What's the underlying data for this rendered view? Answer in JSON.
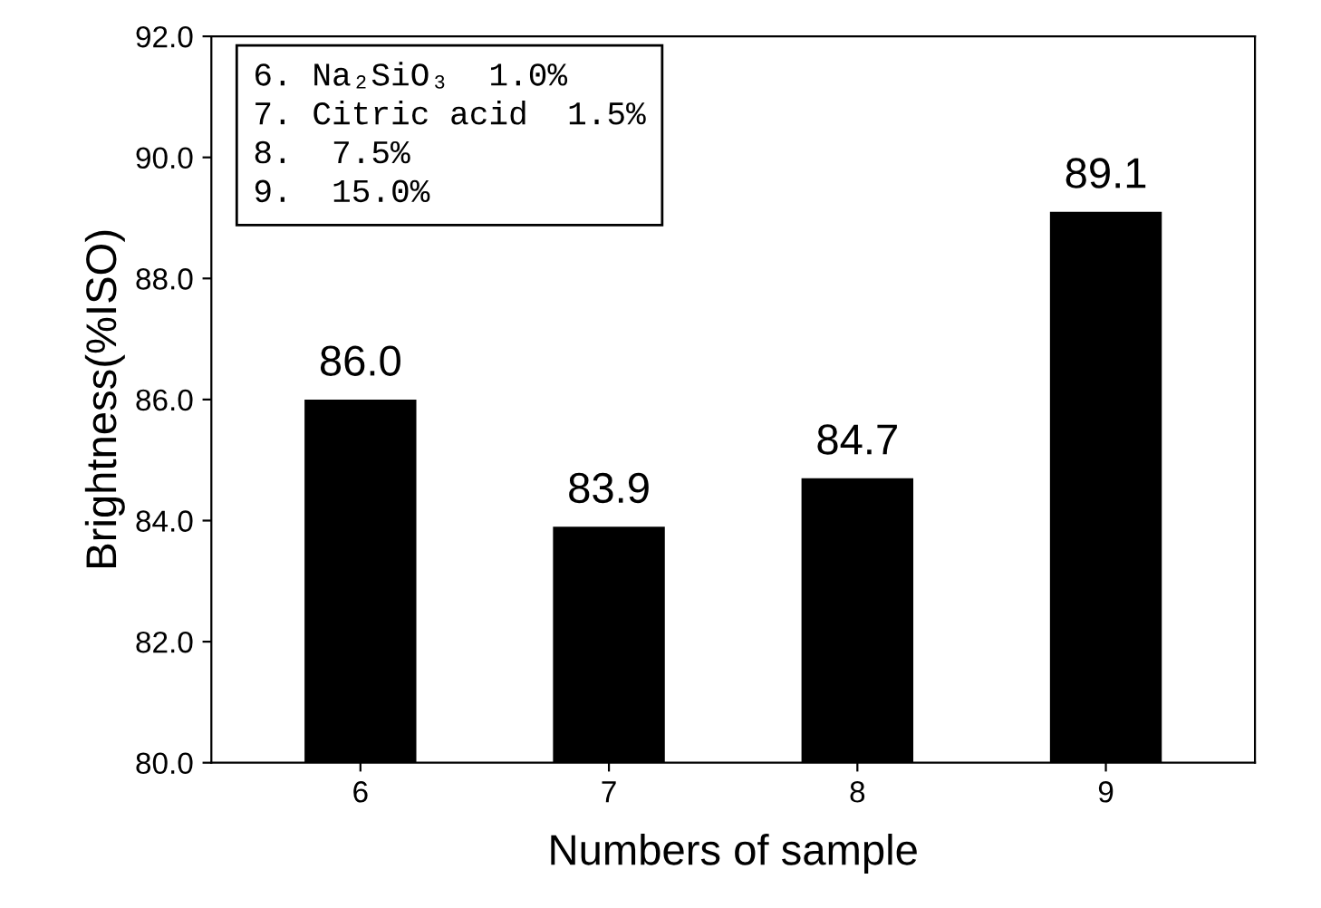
{
  "chart_data": {
    "type": "bar",
    "xlabel": "Numbers of sample",
    "ylabel": "Brightness(%ISO)",
    "categories": [
      "6",
      "7",
      "8",
      "9"
    ],
    "values": [
      86.0,
      83.9,
      84.7,
      89.1
    ],
    "value_labels": [
      "86.0",
      "83.9",
      "84.7",
      "89.1"
    ],
    "color": "#000000",
    "ylim": [
      80,
      92
    ],
    "yticks": [
      {
        "value": 80,
        "label": "80.0"
      },
      {
        "value": 82,
        "label": "82.0"
      },
      {
        "value": 84,
        "label": "84.0"
      },
      {
        "value": 86,
        "label": "86.0"
      },
      {
        "value": 88,
        "label": "88.0"
      },
      {
        "value": 90,
        "label": "90.0"
      },
      {
        "value": 92,
        "label": "92.0"
      }
    ],
    "grid": false,
    "annotations": [
      "6. Na₂SiO₃  1.0%",
      "7. Citric acid  1.5%",
      "8.  7.5%",
      "9.  15.0%"
    ]
  }
}
